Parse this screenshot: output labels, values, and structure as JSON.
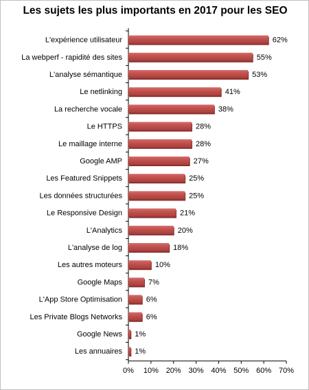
{
  "chart_data": {
    "type": "bar",
    "orientation": "horizontal",
    "title": "Les sujets les plus importants en 2017 pour les SEO",
    "categories": [
      "L'expérience utilisateur",
      "La webperf - rapidité des sites",
      "L'analyse sémantique",
      "Le netlinking",
      "La recherche vocale",
      "Le HTTPS",
      "Le maillage interne",
      "Google AMP",
      "Les Featured Snippets",
      "Les données structurées",
      "Le Responsive Design",
      "L'Analytics",
      "L'analyse de log",
      "Les autres moteurs",
      "Google Maps",
      "L'App Store Optimisation",
      "Les Private Blogs Networks",
      "Google News",
      "Les annuaires"
    ],
    "values": [
      62,
      55,
      53,
      41,
      38,
      28,
      28,
      27,
      25,
      25,
      21,
      20,
      18,
      10,
      7,
      6,
      6,
      1,
      1
    ],
    "value_labels": [
      "62%",
      "55%",
      "53%",
      "41%",
      "38%",
      "28%",
      "28%",
      "27%",
      "25%",
      "25%",
      "21%",
      "20%",
      "18%",
      "10%",
      "7%",
      "6%",
      "6%",
      "1%",
      "1%"
    ],
    "xlim": [
      0,
      70
    ],
    "x_ticks": [
      "0%",
      "10%",
      "20%",
      "30%",
      "40%",
      "50%",
      "60%",
      "70%"
    ],
    "grid": false,
    "bar_color": "#c0504d",
    "bar_color_dark": "#8c2f2c"
  }
}
